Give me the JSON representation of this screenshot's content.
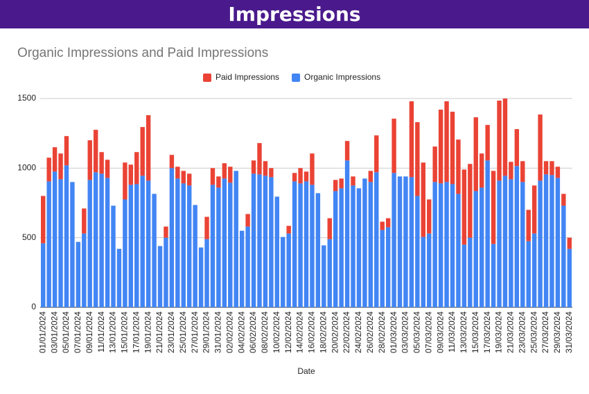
{
  "header": "Impressions",
  "chart_data": {
    "type": "stacked-bar",
    "title": "Organic Impressions and Paid Impressions",
    "x_label": "Date",
    "categories": [
      "01/01/2024",
      null,
      "03/01/2024",
      null,
      "05/01/2024",
      null,
      "07/01/2024",
      null,
      "09/01/2024",
      null,
      "11/01/2024",
      null,
      "13/01/2024",
      null,
      "15/01/2024",
      null,
      "17/01/2024",
      null,
      "19/01/2024",
      null,
      "21/01/2024",
      null,
      "23/01/2024",
      null,
      "25/01/2024",
      null,
      "27/01/2024",
      null,
      "29/01/2024",
      null,
      "31/01/2024",
      null,
      "02/02/2024",
      null,
      "04/02/2024",
      null,
      "06/02/2024",
      null,
      "08/02/2024",
      null,
      "10/02/2024",
      null,
      "12/02/2024",
      null,
      "14/02/2024",
      null,
      "16/02/2024",
      null,
      "18/02/2024",
      null,
      "20/02/2024",
      null,
      "22/02/2024",
      null,
      "24/02/2024",
      null,
      "26/02/2024",
      null,
      "28/02/2024",
      null,
      "01/03/2024",
      null,
      "03/03/2024",
      null,
      "05/03/2024",
      null,
      "07/03/2024",
      null,
      "09/03/2024",
      null,
      "11/03/2024",
      null,
      "13/03/2024",
      null,
      "15/03/2024",
      null,
      "17/03/2024",
      null,
      "19/03/2024",
      null,
      "21/03/2024",
      null,
      "23/03/2024",
      null,
      "25/03/2024",
      null,
      "27/03/2024",
      null,
      "29/03/2024",
      null,
      "31/03/2024"
    ],
    "series": [
      {
        "name": "Paid Impressions",
        "color": "#ea4335",
        "values": [
          340,
          170,
          175,
          185,
          210,
          0,
          0,
          180,
          285,
          305,
          155,
          130,
          0,
          0,
          265,
          145,
          230,
          350,
          470,
          0,
          0,
          80,
          95,
          85,
          90,
          85,
          0,
          0,
          160,
          120,
          80,
          110,
          115,
          0,
          0,
          90,
          95,
          225,
          105,
          65,
          0,
          0,
          55,
          60,
          110,
          70,
          225,
          0,
          0,
          150,
          80,
          70,
          140,
          65,
          0,
          0,
          80,
          265,
          60,
          65,
          390,
          0,
          0,
          545,
          530,
          535,
          245,
          255,
          530,
          580,
          520,
          390,
          540,
          530,
          530,
          245,
          255,
          525,
          575,
          555,
          125,
          265,
          150,
          225,
          345,
          475,
          95,
          100,
          80,
          85,
          80
        ]
      },
      {
        "name": "Organic Impressions",
        "color": "#4285f4",
        "values": [
          460,
          905,
          975,
          920,
          1020,
          900,
          470,
          530,
          915,
          970,
          960,
          930,
          730,
          420,
          775,
          880,
          885,
          945,
          910,
          815,
          440,
          500,
          1000,
          925,
          890,
          875,
          735,
          430,
          490,
          880,
          860,
          925,
          895,
          980,
          550,
          580,
          960,
          955,
          945,
          935,
          795,
          505,
          530,
          905,
          890,
          905,
          880,
          820,
          445,
          490,
          835,
          855,
          1055,
          875,
          855,
          925,
          900,
          970,
          555,
          575,
          965,
          940,
          940,
          935,
          800,
          505,
          530,
          900,
          890,
          900,
          885,
          815,
          450,
          500,
          835,
          860,
          1055,
          455,
          910,
          945,
          920,
          1015,
          900,
          475,
          530,
          910,
          955,
          950,
          930,
          730,
          420
        ]
      }
    ],
    "ylim": [
      0,
      1500
    ],
    "yticks": [
      0,
      500,
      1000,
      1500
    ],
    "grid": true,
    "legend": "top"
  }
}
